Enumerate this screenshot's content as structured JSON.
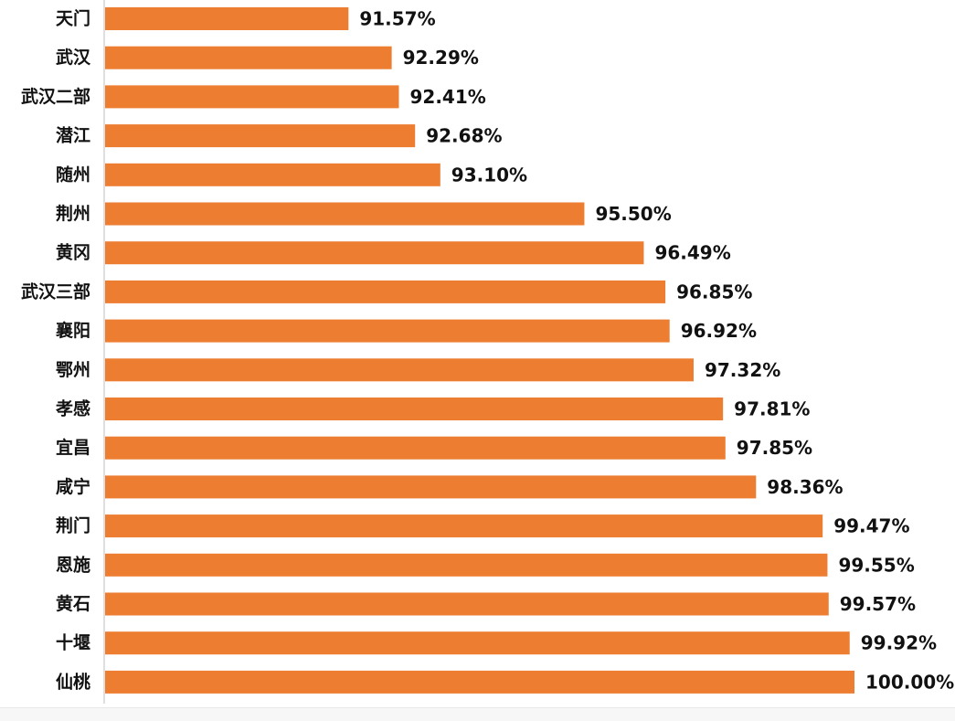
{
  "chart_data": {
    "type": "bar",
    "orientation": "horizontal",
    "categories": [
      "天门",
      "武汉",
      "武汉二部",
      "潜江",
      "随州",
      "荆州",
      "黄冈",
      "武汉三部",
      "襄阳",
      "鄂州",
      "孝感",
      "宜昌",
      "咸宁",
      "荆门",
      "恩施",
      "黄石",
      "十堰",
      "仙桃"
    ],
    "values": [
      91.57,
      92.29,
      92.41,
      92.68,
      93.1,
      95.5,
      96.49,
      96.85,
      96.92,
      97.32,
      97.81,
      97.85,
      98.36,
      99.47,
      99.55,
      99.57,
      99.92,
      100.0
    ],
    "value_labels": [
      "91.57%",
      "92.29%",
      "92.41%",
      "92.68%",
      "93.10%",
      "95.50%",
      "96.49%",
      "96.85%",
      "96.92%",
      "97.32%",
      "97.81%",
      "97.85%",
      "98.36%",
      "99.47%",
      "99.55%",
      "99.57%",
      "99.92%",
      "100.00%"
    ],
    "xlim": [
      87.5,
      100
    ],
    "bar_color": "#ED7D31",
    "axis_color": "#BFBFBF",
    "grid": false,
    "legend": "none"
  }
}
